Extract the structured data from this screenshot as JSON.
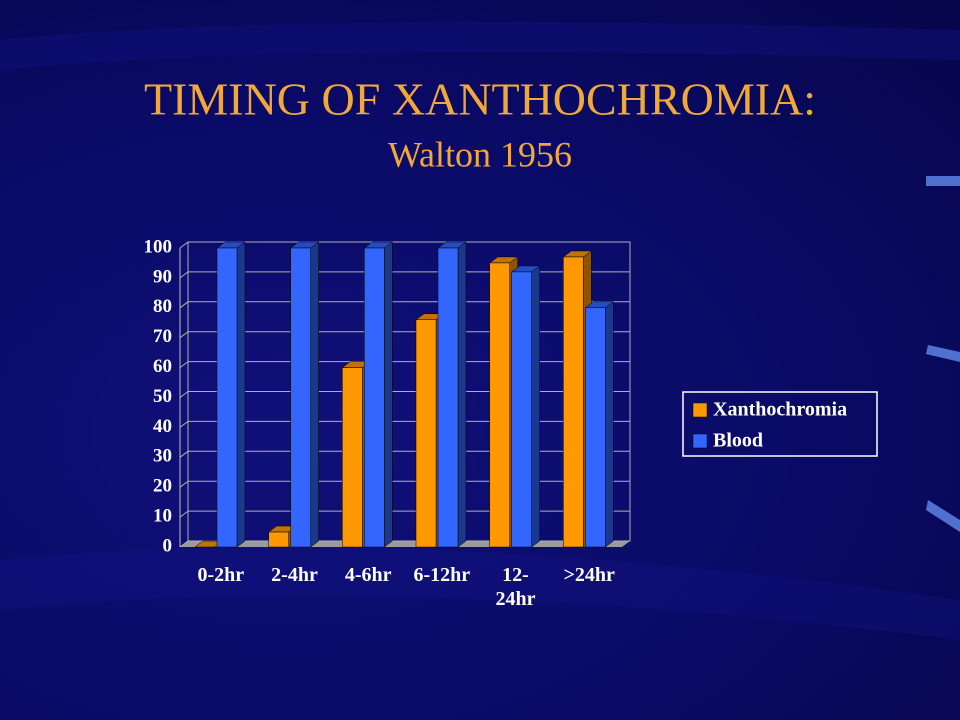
{
  "chart_data": {
    "type": "bar3d",
    "title": "TIMING OF XANTHOCHROMIA:",
    "subtitle": "Walton 1956",
    "categories": [
      "0-2hr",
      "2-4hr",
      "4-6hr",
      "6-12hr",
      "12-\n24hr",
      ">24hr"
    ],
    "series": [
      {
        "name": "Xanthochromia",
        "color": "#ff9900",
        "values": [
          0,
          5,
          60,
          76,
          95,
          97
        ]
      },
      {
        "name": "Blood",
        "color": "#3366ff",
        "values": [
          100,
          100,
          100,
          100,
          92,
          80
        ]
      }
    ],
    "ylim": [
      0,
      100
    ],
    "yticks": [
      0,
      10,
      20,
      30,
      40,
      50,
      60,
      70,
      80,
      90,
      100
    ],
    "grid": true,
    "legend": "right"
  }
}
